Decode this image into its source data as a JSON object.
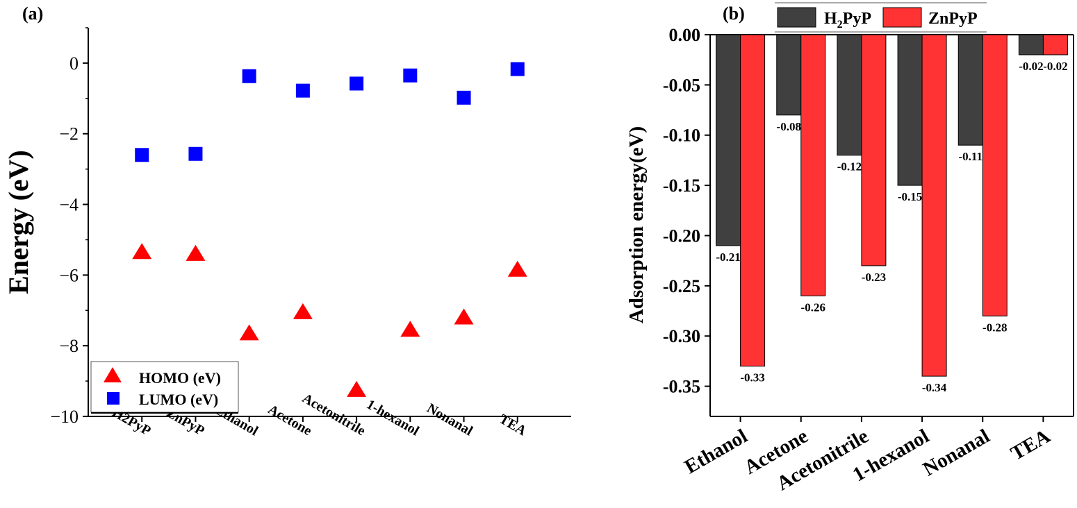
{
  "chart_data": [
    {
      "panel_label": "(a)",
      "type": "scatter",
      "title": "",
      "xlabel": "",
      "ylabel": "Energy (eV)",
      "ylim": [
        -10,
        1
      ],
      "yticks": [
        0,
        -2,
        -4,
        -6,
        -8,
        -10
      ],
      "ytick_labels": [
        "0",
        "−2",
        "−4",
        "−6",
        "−8",
        "−10"
      ],
      "categories": [
        "H2PyP",
        "ZnPyP",
        "Ethanol",
        "Acetone",
        "Acetonitrile",
        "1-hexanol",
        "Nonanal",
        "TEA"
      ],
      "series": [
        {
          "name": "HOMO (eV)",
          "marker": "triangle",
          "color": "#ff0000",
          "values": [
            -5.35,
            -5.4,
            -7.65,
            -7.05,
            -9.25,
            -7.55,
            -7.2,
            -5.85
          ]
        },
        {
          "name": "LUMO (eV)",
          "marker": "square",
          "color": "#0000ff",
          "values": [
            -2.6,
            -2.57,
            -0.37,
            -0.78,
            -0.58,
            -0.35,
            -0.98,
            -0.17
          ]
        }
      ],
      "legend_position": "bottom-left",
      "grid": false
    },
    {
      "panel_label": "(b)",
      "type": "bar",
      "title": "",
      "xlabel": "",
      "ylabel": "Adsorption energy(eV)",
      "ylim": [
        -0.38,
        0
      ],
      "yticks": [
        0.0,
        -0.05,
        -0.1,
        -0.15,
        -0.2,
        -0.25,
        -0.3,
        -0.35
      ],
      "ytick_labels": [
        "0.00",
        "-0.05",
        "-0.10",
        "-0.15",
        "-0.20",
        "-0.25",
        "-0.30",
        "-0.35"
      ],
      "categories": [
        "Ethanol",
        "Acetone",
        "Acetonitrile",
        "1-hexanol",
        "Nonanal",
        "TEA"
      ],
      "series": [
        {
          "name_main": "H",
          "name_sub": "2",
          "name_rest": "PyP",
          "color": "#404040",
          "values": [
            -0.21,
            -0.08,
            -0.12,
            -0.15,
            -0.11,
            -0.02
          ],
          "labels": [
            "-0.21",
            "-0.08",
            "-0.12",
            "-0.15",
            "-0.11",
            "-0.02"
          ]
        },
        {
          "name": "ZnPyP",
          "color": "#ff3333",
          "values": [
            -0.33,
            -0.26,
            -0.23,
            -0.34,
            -0.28,
            -0.02
          ],
          "labels": [
            "-0.33",
            "-0.26",
            "-0.23",
            "-0.34",
            "-0.28",
            "-0.02"
          ]
        }
      ],
      "legend_position": "top",
      "grid": false
    }
  ]
}
